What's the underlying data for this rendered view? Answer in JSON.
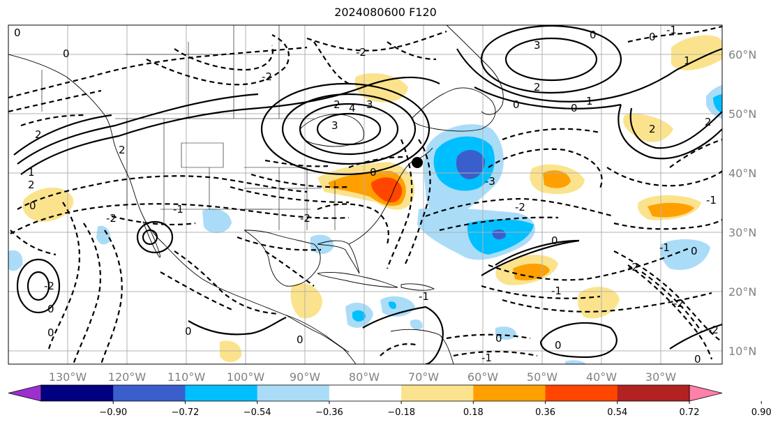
{
  "title": "2024080600 F120",
  "lon_labels": [
    "130°W",
    "120°W",
    "110°W",
    "100°W",
    "90°W",
    "80°W",
    "70°W",
    "60°W",
    "50°W",
    "40°W",
    "30°W"
  ],
  "lat_labels": [
    "60°N",
    "50°N",
    "40°N",
    "30°N",
    "20°N",
    "10°N"
  ],
  "colorbar": {
    "tick_labels": [
      "−0.90",
      "−0.72",
      "−0.54",
      "−0.36",
      "−0.18",
      "0.18",
      "0.36",
      "0.54",
      "0.72",
      "0.90"
    ],
    "colors": [
      "#9b30d0",
      "#000080",
      "#3a5fcd",
      "#00bfff",
      "#aadcf8",
      "#ffffff",
      "#fbe38d",
      "#ffa000",
      "#ff4500",
      "#b22222",
      "#ff80a8"
    ]
  },
  "contour_labels": [
    "0",
    "1",
    "2",
    "3",
    "4",
    "-1",
    "-2",
    "-3"
  ],
  "marker": "storm-position-dot"
}
